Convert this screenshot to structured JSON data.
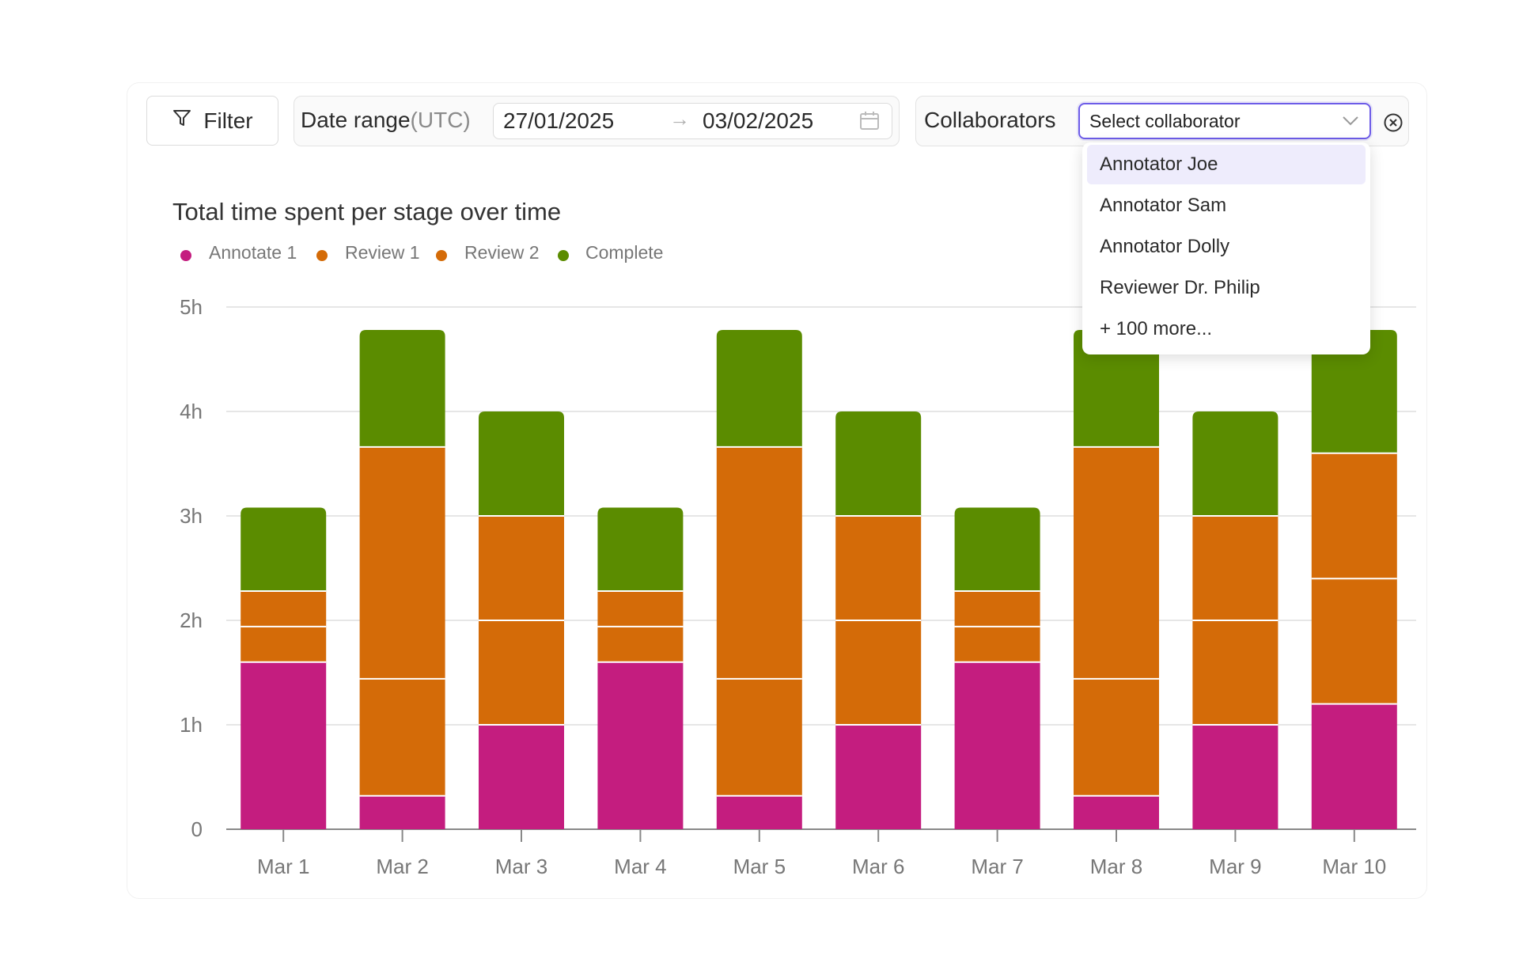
{
  "toolbar": {
    "filter_label": "Filter",
    "date_range_label": "Date range",
    "date_range_tz": "(UTC)",
    "date_start": "27/01/2025",
    "date_arrow": "→",
    "date_end": "03/02/2025",
    "collaborators_label": "Collaborators",
    "select_placeholder": "Select collaborator"
  },
  "dropdown": {
    "items": [
      "Annotator Joe",
      "Annotator Sam",
      "Annotator Dolly",
      "Reviewer Dr. Philip",
      "+ 100 more..."
    ],
    "highlighted_index": 0
  },
  "colors": {
    "accent": "#6d5ce8",
    "annotate1": "#c41d7f",
    "review": "#d46b08",
    "complete": "#5b8c00"
  },
  "chart_data": {
    "type": "bar",
    "stacked": true,
    "title": "Total time spent per stage over time",
    "categories": [
      "Mar 1",
      "Mar 2",
      "Mar 3",
      "Mar 4",
      "Mar 5",
      "Mar 6",
      "Mar 7",
      "Mar 8",
      "Mar 9",
      "Mar 10"
    ],
    "series": [
      {
        "name": "Annotate 1",
        "color": "#c41d7f",
        "values": [
          1.6,
          0.32,
          1.0,
          1.6,
          0.32,
          1.0,
          1.6,
          0.32,
          1.0,
          1.2
        ]
      },
      {
        "name": "Review 1",
        "color": "#d46b08",
        "values": [
          0.34,
          1.12,
          1.0,
          0.34,
          1.12,
          1.0,
          0.34,
          1.12,
          1.0,
          1.2
        ]
      },
      {
        "name": "Review 2",
        "color": "#d46b08",
        "values": [
          0.34,
          2.22,
          1.0,
          0.34,
          2.22,
          1.0,
          0.34,
          2.22,
          1.0,
          1.2
        ]
      },
      {
        "name": "Complete",
        "color": "#5b8c00",
        "values": [
          0.8,
          1.12,
          1.0,
          0.8,
          1.12,
          1.0,
          0.8,
          1.12,
          1.0,
          1.18
        ]
      }
    ],
    "ylim": [
      0,
      5
    ],
    "yticks": [
      0,
      1,
      2,
      3,
      4,
      5
    ],
    "ytick_labels": [
      "0",
      "1h",
      "2h",
      "3h",
      "4h",
      "5h"
    ],
    "grid": true,
    "legend_position": "top-left"
  }
}
